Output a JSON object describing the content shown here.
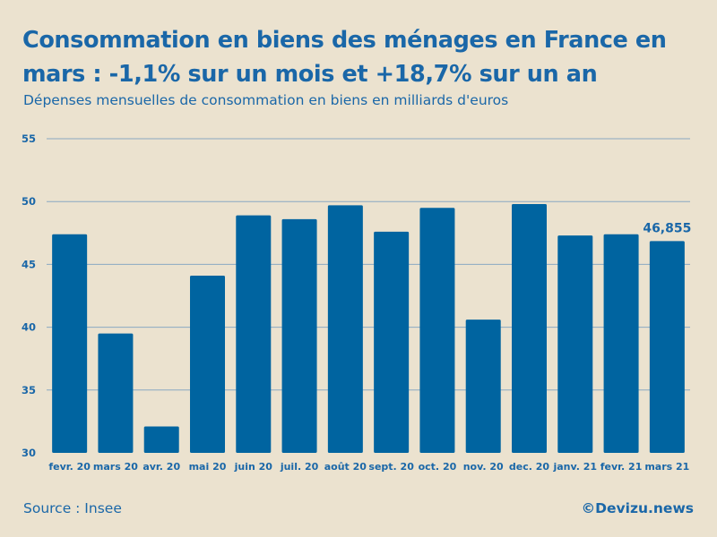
{
  "title": "Consommation en biens des ménages en France en mars : -1,1% sur un mois et +18,7% sur un an",
  "subtitle": "Dépenses mensuelles de consommation en biens en milliards d'euros",
  "source": "Source : Insee",
  "credit": "©Devizu.news",
  "colors": {
    "bar": "#0064a0",
    "text": "#1a67a8",
    "grid": "#8aa8c2",
    "background": "#ebe2cf"
  },
  "chart_data": {
    "type": "bar",
    "categories": [
      "fevr. 20",
      "mars 20",
      "avr. 20",
      "mai 20",
      "juin 20",
      "juil. 20",
      "août 20",
      "sept. 20",
      "oct. 20",
      "nov. 20",
      "dec. 20",
      "janv. 21",
      "fevr. 21",
      "mars 21"
    ],
    "values": [
      47.4,
      39.5,
      32.1,
      44.1,
      48.9,
      48.6,
      49.7,
      47.6,
      49.5,
      40.6,
      49.8,
      47.3,
      47.4,
      46.855
    ],
    "ylim": [
      30,
      55
    ],
    "yticks": [
      30,
      35,
      40,
      45,
      50,
      55
    ],
    "annotation": {
      "category": "mars 21",
      "label": "46,855"
    },
    "xlabel": "",
    "ylabel": "",
    "grid": true
  }
}
